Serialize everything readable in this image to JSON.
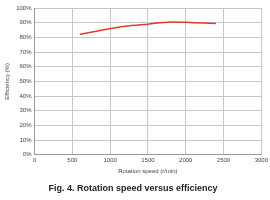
{
  "chart_data": {
    "type": "line",
    "title": "Fig. 4. Rotation speed versus efficiency",
    "x_label": "Rotation speed (r/min)",
    "y_label": "Efficiency (%)",
    "x": [
      600,
      900,
      1200,
      1500,
      1800,
      2100,
      2400
    ],
    "values": [
      82,
      85,
      87.5,
      89,
      90.5,
      90,
      89.5
    ],
    "color": "#e03a2f",
    "xlim": [
      0,
      3000
    ],
    "xticks": [
      0,
      500,
      1000,
      1500,
      2000,
      2500,
      3000
    ],
    "ylim": [
      0,
      100
    ],
    "yticks": [
      {
        "value": 0,
        "label": "0%"
      },
      {
        "value": 10,
        "label": "10%"
      },
      {
        "value": 20,
        "label": "20%"
      },
      {
        "value": 30,
        "label": "30%"
      },
      {
        "value": 40,
        "label": "40%"
      },
      {
        "value": 50,
        "label": "50%"
      },
      {
        "value": 60,
        "label": "60%"
      },
      {
        "value": 70,
        "label": "70%"
      },
      {
        "value": 80,
        "label": "80%"
      },
      {
        "value": 90,
        "label": "90%"
      },
      {
        "value": 100,
        "label": "100%"
      }
    ],
    "grid": true
  }
}
